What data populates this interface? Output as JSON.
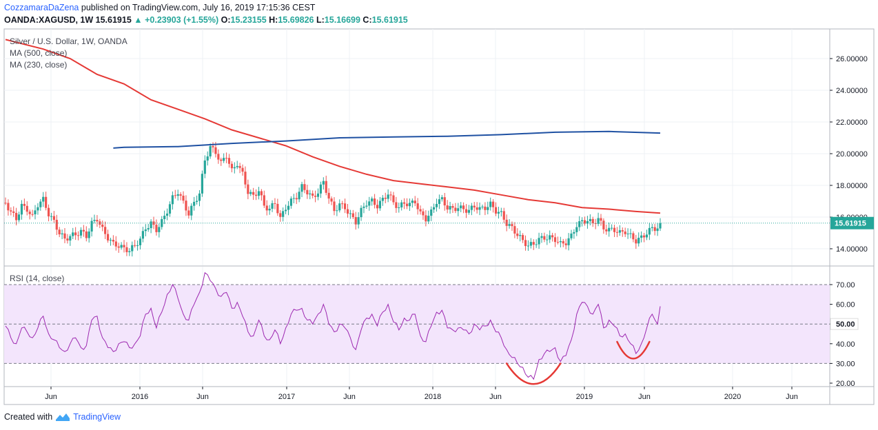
{
  "header": {
    "author": "CozzamaraDaZena",
    "published": "published on TradingView.com, July 16, 2019 17:15:36 CEST",
    "symbol": "OANDA:XAGUSD, 1W",
    "last": "15.61915",
    "change": "▲ +0.23903 (+1.55%)",
    "o_label": "O:",
    "o": "15.23155",
    "h_label": "H:",
    "h": "15.69826",
    "l_label": "L:",
    "l": "15.16699",
    "c_label": "C:",
    "c": "15.61915"
  },
  "legend": {
    "title": "Silver / U.S. Dollar, 1W, OANDA",
    "ma500": "MA (500, close)",
    "ma230": "MA (230, close)",
    "rsi": "RSI (14, close)"
  },
  "price_badge": "15.61915",
  "rsi_badge": "50.00",
  "footer": {
    "created_with": "Created with",
    "brand": "TradingView"
  },
  "colors": {
    "up": "#26a69a",
    "down": "#ef5350",
    "ma500": "#e53935",
    "ma230": "#1e50a2",
    "rsi": "#9c27b0",
    "rsi_band": "#f3e5fc",
    "grid": "#eef0f4",
    "annotation": "#e53935"
  },
  "chart_data": [
    {
      "type": "candlestick",
      "title": "Silver / U.S. Dollar, 1W, OANDA",
      "x_ticks": [
        "Jun",
        "2016",
        "Jun",
        "2017",
        "Jun",
        "2018",
        "Jun",
        "2019",
        "Jun",
        "2020",
        "Jun"
      ],
      "y_ticks": [
        "14.00000",
        "16.00000",
        "18.00000",
        "20.00000",
        "22.00000",
        "24.00000",
        "26.00000"
      ],
      "ylim": [
        13,
        27.5
      ],
      "x_start_week": -24,
      "x_end_week": 243,
      "price_closes": [
        {
          "w": -24,
          "c": 16.9
        },
        {
          "w": -22,
          "c": 16.3
        },
        {
          "w": -20,
          "c": 15.9
        },
        {
          "w": -18,
          "c": 16.7
        },
        {
          "w": -16,
          "c": 16.5
        },
        {
          "w": -14,
          "c": 16.0
        },
        {
          "w": -12,
          "c": 16.8
        },
        {
          "w": -10,
          "c": 17.1
        },
        {
          "w": -8,
          "c": 16.2
        },
        {
          "w": -6,
          "c": 15.7
        },
        {
          "w": -4,
          "c": 15.0
        },
        {
          "w": -2,
          "c": 14.6
        },
        {
          "w": 0,
          "c": 14.8
        },
        {
          "w": 2,
          "c": 14.9
        },
        {
          "w": 4,
          "c": 15.1
        },
        {
          "w": 6,
          "c": 14.8
        },
        {
          "w": 8,
          "c": 15.6
        },
        {
          "w": 10,
          "c": 15.9
        },
        {
          "w": 12,
          "c": 15.2
        },
        {
          "w": 14,
          "c": 14.7
        },
        {
          "w": 16,
          "c": 14.3
        },
        {
          "w": 18,
          "c": 14.2
        },
        {
          "w": 20,
          "c": 14.0
        },
        {
          "w": 22,
          "c": 13.9
        },
        {
          "w": 24,
          "c": 14.2
        },
        {
          "w": 26,
          "c": 14.6
        },
        {
          "w": 28,
          "c": 15.3
        },
        {
          "w": 30,
          "c": 15.6
        },
        {
          "w": 32,
          "c": 15.2
        },
        {
          "w": 34,
          "c": 15.7
        },
        {
          "w": 36,
          "c": 16.4
        },
        {
          "w": 38,
          "c": 17.2
        },
        {
          "w": 40,
          "c": 17.6
        },
        {
          "w": 42,
          "c": 16.9
        },
        {
          "w": 44,
          "c": 16.2
        },
        {
          "w": 46,
          "c": 16.9
        },
        {
          "w": 48,
          "c": 17.5
        },
        {
          "w": 50,
          "c": 19.6
        },
        {
          "w": 52,
          "c": 20.4
        },
        {
          "w": 54,
          "c": 20.1
        },
        {
          "w": 56,
          "c": 19.4
        },
        {
          "w": 58,
          "c": 19.9
        },
        {
          "w": 60,
          "c": 18.9
        },
        {
          "w": 62,
          "c": 19.4
        },
        {
          "w": 64,
          "c": 18.7
        },
        {
          "w": 66,
          "c": 17.6
        },
        {
          "w": 68,
          "c": 17.3
        },
        {
          "w": 70,
          "c": 17.7
        },
        {
          "w": 72,
          "c": 16.7
        },
        {
          "w": 74,
          "c": 16.5
        },
        {
          "w": 76,
          "c": 16.9
        },
        {
          "w": 78,
          "c": 15.9
        },
        {
          "w": 80,
          "c": 16.6
        },
        {
          "w": 82,
          "c": 17.0
        },
        {
          "w": 84,
          "c": 17.3
        },
        {
          "w": 86,
          "c": 17.9
        },
        {
          "w": 88,
          "c": 17.6
        },
        {
          "w": 90,
          "c": 17.2
        },
        {
          "w": 92,
          "c": 17.6
        },
        {
          "w": 94,
          "c": 18.2
        },
        {
          "w": 96,
          "c": 17.2
        },
        {
          "w": 98,
          "c": 16.4
        },
        {
          "w": 100,
          "c": 16.8
        },
        {
          "w": 102,
          "c": 16.6
        },
        {
          "w": 104,
          "c": 16.1
        },
        {
          "w": 106,
          "c": 15.7
        },
        {
          "w": 108,
          "c": 16.4
        },
        {
          "w": 110,
          "c": 16.9
        },
        {
          "w": 112,
          "c": 17.0
        },
        {
          "w": 114,
          "c": 16.7
        },
        {
          "w": 116,
          "c": 17.1
        },
        {
          "w": 118,
          "c": 17.5
        },
        {
          "w": 120,
          "c": 16.9
        },
        {
          "w": 122,
          "c": 16.6
        },
        {
          "w": 124,
          "c": 16.9
        },
        {
          "w": 126,
          "c": 16.8
        },
        {
          "w": 128,
          "c": 17.0
        },
        {
          "w": 130,
          "c": 16.2
        },
        {
          "w": 132,
          "c": 15.9
        },
        {
          "w": 134,
          "c": 16.3
        },
        {
          "w": 136,
          "c": 17.0
        },
        {
          "w": 138,
          "c": 17.1
        },
        {
          "w": 140,
          "c": 16.6
        },
        {
          "w": 142,
          "c": 16.5
        },
        {
          "w": 144,
          "c": 16.6
        },
        {
          "w": 146,
          "c": 16.5
        },
        {
          "w": 148,
          "c": 16.4
        },
        {
          "w": 150,
          "c": 16.7
        },
        {
          "w": 152,
          "c": 16.5
        },
        {
          "w": 154,
          "c": 16.6
        },
        {
          "w": 156,
          "c": 16.8
        },
        {
          "w": 158,
          "c": 16.4
        },
        {
          "w": 160,
          "c": 16.2
        },
        {
          "w": 162,
          "c": 15.6
        },
        {
          "w": 164,
          "c": 15.3
        },
        {
          "w": 166,
          "c": 14.9
        },
        {
          "w": 168,
          "c": 14.5
        },
        {
          "w": 170,
          "c": 14.2
        },
        {
          "w": 172,
          "c": 14.3
        },
        {
          "w": 174,
          "c": 14.6
        },
        {
          "w": 176,
          "c": 14.7
        },
        {
          "w": 178,
          "c": 14.7
        },
        {
          "w": 180,
          "c": 14.6
        },
        {
          "w": 182,
          "c": 14.3
        },
        {
          "w": 184,
          "c": 14.4
        },
        {
          "w": 186,
          "c": 14.8
        },
        {
          "w": 188,
          "c": 15.5
        },
        {
          "w": 190,
          "c": 15.7
        },
        {
          "w": 192,
          "c": 15.8
        },
        {
          "w": 194,
          "c": 15.6
        },
        {
          "w": 196,
          "c": 15.9
        },
        {
          "w": 198,
          "c": 15.3
        },
        {
          "w": 200,
          "c": 15.2
        },
        {
          "w": 202,
          "c": 15.2
        },
        {
          "w": 204,
          "c": 15.0
        },
        {
          "w": 206,
          "c": 15.1
        },
        {
          "w": 208,
          "c": 14.8
        },
        {
          "w": 210,
          "c": 14.5
        },
        {
          "w": 212,
          "c": 14.7
        },
        {
          "w": 214,
          "c": 15.0
        },
        {
          "w": 216,
          "c": 15.3
        },
        {
          "w": 218,
          "c": 15.3
        },
        {
          "w": 219,
          "c": 15.62
        }
      ],
      "ma500": [
        {
          "w": -24,
          "v": 27.2
        },
        {
          "w": -10,
          "v": 26.6
        },
        {
          "w": 0,
          "v": 26.0
        },
        {
          "w": 10,
          "v": 25.0
        },
        {
          "w": 20,
          "v": 24.4
        },
        {
          "w": 30,
          "v": 23.4
        },
        {
          "w": 40,
          "v": 22.8
        },
        {
          "w": 50,
          "v": 22.2
        },
        {
          "w": 60,
          "v": 21.5
        },
        {
          "w": 70,
          "v": 21.0
        },
        {
          "w": 80,
          "v": 20.5
        },
        {
          "w": 90,
          "v": 19.8
        },
        {
          "w": 100,
          "v": 19.2
        },
        {
          "w": 110,
          "v": 18.7
        },
        {
          "w": 120,
          "v": 18.3
        },
        {
          "w": 130,
          "v": 18.1
        },
        {
          "w": 140,
          "v": 17.9
        },
        {
          "w": 150,
          "v": 17.7
        },
        {
          "w": 160,
          "v": 17.4
        },
        {
          "w": 170,
          "v": 17.1
        },
        {
          "w": 180,
          "v": 16.9
        },
        {
          "w": 190,
          "v": 16.6
        },
        {
          "w": 200,
          "v": 16.5
        },
        {
          "w": 210,
          "v": 16.35
        },
        {
          "w": 219,
          "v": 16.25
        }
      ],
      "ma230": [
        {
          "w": 16,
          "v": 20.35
        },
        {
          "w": 20,
          "v": 20.4
        },
        {
          "w": 40,
          "v": 20.45
        },
        {
          "w": 60,
          "v": 20.65
        },
        {
          "w": 80,
          "v": 20.8
        },
        {
          "w": 100,
          "v": 21.0
        },
        {
          "w": 120,
          "v": 21.05
        },
        {
          "w": 140,
          "v": 21.1
        },
        {
          "w": 160,
          "v": 21.2
        },
        {
          "w": 180,
          "v": 21.35
        },
        {
          "w": 200,
          "v": 21.4
        },
        {
          "w": 219,
          "v": 21.3
        }
      ]
    },
    {
      "type": "line",
      "title": "RSI (14, close)",
      "y_ticks": [
        "20.00",
        "30.00",
        "40.00",
        "50.00",
        "60.00",
        "70.00"
      ],
      "ylim": [
        17,
        77
      ],
      "band": [
        30,
        70
      ],
      "midline": 50,
      "series": [
        {
          "w": -24,
          "v": 49
        },
        {
          "w": -22,
          "v": 43
        },
        {
          "w": -20,
          "v": 40
        },
        {
          "w": -18,
          "v": 48
        },
        {
          "w": -16,
          "v": 46
        },
        {
          "w": -14,
          "v": 43
        },
        {
          "w": -12,
          "v": 48
        },
        {
          "w": -10,
          "v": 54
        },
        {
          "w": -8,
          "v": 45
        },
        {
          "w": -6,
          "v": 42
        },
        {
          "w": -4,
          "v": 38
        },
        {
          "w": -2,
          "v": 36
        },
        {
          "w": 0,
          "v": 40
        },
        {
          "w": 2,
          "v": 43
        },
        {
          "w": 4,
          "v": 38
        },
        {
          "w": 6,
          "v": 39
        },
        {
          "w": 8,
          "v": 52
        },
        {
          "w": 10,
          "v": 54
        },
        {
          "w": 12,
          "v": 43
        },
        {
          "w": 14,
          "v": 38
        },
        {
          "w": 16,
          "v": 36
        },
        {
          "w": 18,
          "v": 40
        },
        {
          "w": 20,
          "v": 41
        },
        {
          "w": 22,
          "v": 38
        },
        {
          "w": 24,
          "v": 40
        },
        {
          "w": 26,
          "v": 44
        },
        {
          "w": 28,
          "v": 55
        },
        {
          "w": 30,
          "v": 58
        },
        {
          "w": 32,
          "v": 48
        },
        {
          "w": 34,
          "v": 56
        },
        {
          "w": 36,
          "v": 65
        },
        {
          "w": 38,
          "v": 70
        },
        {
          "w": 40,
          "v": 63
        },
        {
          "w": 42,
          "v": 55
        },
        {
          "w": 44,
          "v": 52
        },
        {
          "w": 46,
          "v": 60
        },
        {
          "w": 48,
          "v": 66
        },
        {
          "w": 50,
          "v": 76
        },
        {
          "w": 52,
          "v": 72
        },
        {
          "w": 54,
          "v": 68
        },
        {
          "w": 56,
          "v": 64
        },
        {
          "w": 58,
          "v": 66
        },
        {
          "w": 60,
          "v": 58
        },
        {
          "w": 62,
          "v": 61
        },
        {
          "w": 64,
          "v": 54
        },
        {
          "w": 66,
          "v": 46
        },
        {
          "w": 68,
          "v": 44
        },
        {
          "w": 70,
          "v": 52
        },
        {
          "w": 72,
          "v": 44
        },
        {
          "w": 74,
          "v": 42
        },
        {
          "w": 76,
          "v": 47
        },
        {
          "w": 78,
          "v": 40
        },
        {
          "w": 80,
          "v": 48
        },
        {
          "w": 82,
          "v": 55
        },
        {
          "w": 84,
          "v": 57
        },
        {
          "w": 86,
          "v": 58
        },
        {
          "w": 88,
          "v": 52
        },
        {
          "w": 90,
          "v": 50
        },
        {
          "w": 92,
          "v": 55
        },
        {
          "w": 94,
          "v": 60
        },
        {
          "w": 96,
          "v": 50
        },
        {
          "w": 98,
          "v": 46
        },
        {
          "w": 100,
          "v": 50
        },
        {
          "w": 102,
          "v": 48
        },
        {
          "w": 104,
          "v": 43
        },
        {
          "w": 106,
          "v": 37
        },
        {
          "w": 108,
          "v": 47
        },
        {
          "w": 110,
          "v": 53
        },
        {
          "w": 112,
          "v": 55
        },
        {
          "w": 114,
          "v": 49
        },
        {
          "w": 116,
          "v": 56
        },
        {
          "w": 118,
          "v": 60
        },
        {
          "w": 120,
          "v": 51
        },
        {
          "w": 122,
          "v": 47
        },
        {
          "w": 124,
          "v": 53
        },
        {
          "w": 126,
          "v": 52
        },
        {
          "w": 128,
          "v": 55
        },
        {
          "w": 130,
          "v": 44
        },
        {
          "w": 132,
          "v": 41
        },
        {
          "w": 134,
          "v": 49
        },
        {
          "w": 136,
          "v": 56
        },
        {
          "w": 138,
          "v": 57
        },
        {
          "w": 140,
          "v": 48
        },
        {
          "w": 142,
          "v": 47
        },
        {
          "w": 144,
          "v": 48
        },
        {
          "w": 146,
          "v": 47
        },
        {
          "w": 148,
          "v": 45
        },
        {
          "w": 150,
          "v": 50
        },
        {
          "w": 152,
          "v": 47
        },
        {
          "w": 154,
          "v": 49
        },
        {
          "w": 156,
          "v": 52
        },
        {
          "w": 158,
          "v": 46
        },
        {
          "w": 160,
          "v": 43
        },
        {
          "w": 162,
          "v": 37
        },
        {
          "w": 164,
          "v": 33
        },
        {
          "w": 166,
          "v": 30
        },
        {
          "w": 168,
          "v": 28
        },
        {
          "w": 170,
          "v": 23
        },
        {
          "w": 172,
          "v": 22
        },
        {
          "w": 174,
          "v": 32
        },
        {
          "w": 176,
          "v": 35
        },
        {
          "w": 178,
          "v": 36
        },
        {
          "w": 180,
          "v": 38
        },
        {
          "w": 182,
          "v": 31
        },
        {
          "w": 184,
          "v": 34
        },
        {
          "w": 186,
          "v": 42
        },
        {
          "w": 188,
          "v": 55
        },
        {
          "w": 190,
          "v": 61
        },
        {
          "w": 192,
          "v": 59
        },
        {
          "w": 194,
          "v": 55
        },
        {
          "w": 196,
          "v": 60
        },
        {
          "w": 198,
          "v": 48
        },
        {
          "w": 200,
          "v": 52
        },
        {
          "w": 202,
          "v": 49
        },
        {
          "w": 204,
          "v": 44
        },
        {
          "w": 206,
          "v": 45
        },
        {
          "w": 208,
          "v": 40
        },
        {
          "w": 210,
          "v": 35
        },
        {
          "w": 212,
          "v": 40
        },
        {
          "w": 214,
          "v": 48
        },
        {
          "w": 216,
          "v": 55
        },
        {
          "w": 218,
          "v": 50
        },
        {
          "w": 219,
          "v": 59
        }
      ],
      "annotations": [
        {
          "type": "arc",
          "w_from": 162,
          "w_to": 182,
          "bottom": 19
        },
        {
          "type": "arc",
          "w_from": 203,
          "w_to": 215,
          "bottom": 32
        }
      ]
    }
  ]
}
